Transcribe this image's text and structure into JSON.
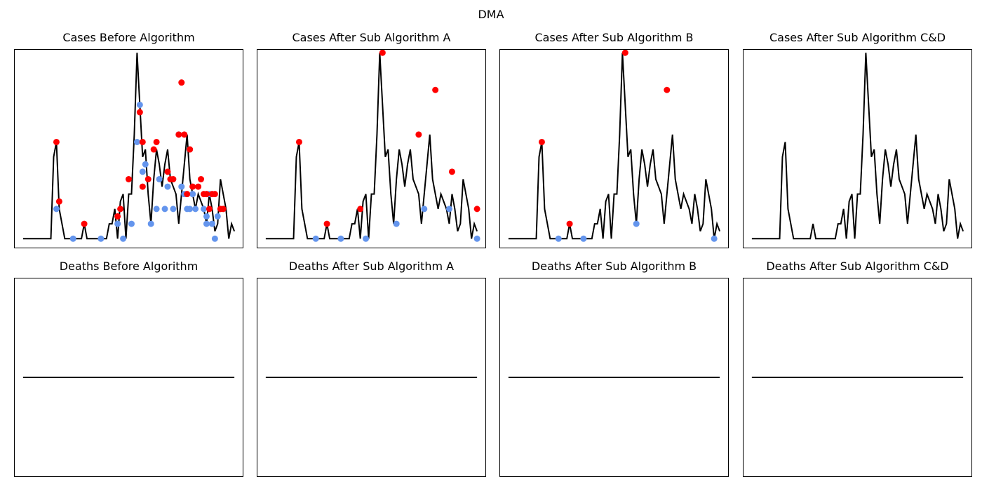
{
  "suptitle": "DMA",
  "colors": {
    "line": "#000000",
    "peak": "#ff0000",
    "trough": "#6495ed"
  },
  "panels": [
    {
      "title": "Cases Before Algorithm",
      "row": 0,
      "col": 0
    },
    {
      "title": "Cases After Sub Algorithm A",
      "row": 0,
      "col": 1
    },
    {
      "title": "Cases After Sub Algorithm B",
      "row": 0,
      "col": 2
    },
    {
      "title": "Cases After Sub Algorithm C&D",
      "row": 0,
      "col": 3
    },
    {
      "title": "Deaths Before Algorithm",
      "row": 1,
      "col": 0
    },
    {
      "title": "Deaths After Sub Algorithm A",
      "row": 1,
      "col": 1
    },
    {
      "title": "Deaths After Sub Algorithm B",
      "row": 1,
      "col": 2
    },
    {
      "title": "Deaths After Sub Algorithm C&D",
      "row": 1,
      "col": 3
    }
  ],
  "chart_data": [
    {
      "type": "line",
      "title": "Cases Before Algorithm",
      "axes_visible": false,
      "xlim": [
        -3,
        79
      ],
      "ylim": [
        -0.6,
        12.7
      ],
      "series": [
        {
          "x": [
            0,
            1,
            2,
            3,
            4,
            5,
            6,
            7,
            8,
            9,
            10,
            11,
            12,
            13,
            14,
            15,
            16,
            17,
            18,
            19,
            20,
            21,
            22,
            23,
            24,
            25,
            26,
            27,
            28,
            29,
            30,
            31,
            32,
            33,
            34,
            35,
            36,
            37,
            38,
            39,
            40,
            41,
            42,
            43,
            44,
            45,
            46,
            47,
            48,
            49,
            50,
            51,
            52,
            53,
            54,
            55,
            56,
            57,
            58,
            59,
            60,
            61,
            62,
            63,
            64,
            65,
            66,
            67,
            68,
            69,
            70,
            71,
            72,
            73,
            74,
            75,
            76
          ],
          "y": [
            0,
            0,
            0,
            0,
            0,
            0,
            0,
            0,
            0,
            0,
            0,
            5.5,
            6.5,
            2,
            1,
            0,
            0,
            0,
            0,
            0,
            0,
            0,
            1,
            0,
            0,
            0,
            0,
            0,
            0,
            0,
            0,
            1,
            1,
            2,
            0,
            2.5,
            3,
            0,
            3,
            3,
            7,
            12.5,
            9,
            5.5,
            6,
            3,
            1,
            4,
            6,
            5,
            3.5,
            5,
            6,
            4,
            3.5,
            3,
            1,
            3,
            5,
            7,
            4,
            3,
            2,
            3,
            2.5,
            2,
            1,
            3,
            2,
            0.5,
            1,
            4,
            3,
            2,
            0,
            1,
            0.5
          ]
        }
      ],
      "peaks": [
        [
          12,
          6.5
        ],
        [
          13,
          2.5
        ],
        [
          22,
          1
        ],
        [
          34,
          1.5
        ],
        [
          35,
          2
        ],
        [
          38,
          4
        ],
        [
          42,
          8.5
        ],
        [
          43,
          6.5
        ],
        [
          43,
          3.5
        ],
        [
          45,
          4
        ],
        [
          47,
          6
        ],
        [
          48,
          6.5
        ],
        [
          52,
          4.5
        ],
        [
          53,
          4
        ],
        [
          54,
          4
        ],
        [
          56,
          7
        ],
        [
          57,
          10.5
        ],
        [
          58,
          7
        ],
        [
          59,
          3
        ],
        [
          60,
          6
        ],
        [
          61,
          3.5
        ],
        [
          63,
          3.5
        ],
        [
          64,
          4
        ],
        [
          65,
          3
        ],
        [
          66,
          3
        ],
        [
          67,
          2
        ],
        [
          68,
          3
        ],
        [
          69,
          3
        ],
        [
          71,
          2
        ],
        [
          72,
          2
        ]
      ],
      "troughs": [
        [
          12,
          2
        ],
        [
          18,
          0
        ],
        [
          28,
          0
        ],
        [
          34,
          1
        ],
        [
          36,
          0
        ],
        [
          39,
          1
        ],
        [
          41,
          6.5
        ],
        [
          42,
          9
        ],
        [
          43,
          4.5
        ],
        [
          44,
          5
        ],
        [
          46,
          1
        ],
        [
          48,
          2
        ],
        [
          49,
          4
        ],
        [
          51,
          2
        ],
        [
          52,
          3.5
        ],
        [
          54,
          2
        ],
        [
          56,
          7
        ],
        [
          57,
          3.5
        ],
        [
          58,
          3
        ],
        [
          59,
          2
        ],
        [
          60,
          2
        ],
        [
          61,
          3
        ],
        [
          62,
          2
        ],
        [
          65,
          2
        ],
        [
          66,
          1.5
        ],
        [
          66,
          1
        ],
        [
          67,
          3
        ],
        [
          68,
          1
        ],
        [
          69,
          0
        ],
        [
          70,
          1.5
        ]
      ]
    },
    {
      "type": "line",
      "title": "Cases After Sub Algorithm A",
      "axes_visible": false,
      "xlim": [
        -3,
        79
      ],
      "ylim": [
        -0.6,
        12.7
      ],
      "series": [
        {
          "x": [
            0,
            1,
            2,
            3,
            4,
            5,
            6,
            7,
            8,
            9,
            10,
            11,
            12,
            13,
            14,
            15,
            16,
            17,
            18,
            19,
            20,
            21,
            22,
            23,
            24,
            25,
            26,
            27,
            28,
            29,
            30,
            31,
            32,
            33,
            34,
            35,
            36,
            37,
            38,
            39,
            40,
            41,
            42,
            43,
            44,
            45,
            46,
            47,
            48,
            49,
            50,
            51,
            52,
            53,
            54,
            55,
            56,
            57,
            58,
            59,
            60,
            61,
            62,
            63,
            64,
            65,
            66,
            67,
            68,
            69,
            70,
            71,
            72,
            73,
            74,
            75,
            76
          ],
          "y": [
            0,
            0,
            0,
            0,
            0,
            0,
            0,
            0,
            0,
            0,
            0,
            5.5,
            6.5,
            2,
            1,
            0,
            0,
            0,
            0,
            0,
            0,
            0,
            1,
            0,
            0,
            0,
            0,
            0,
            0,
            0,
            0,
            1,
            1,
            2,
            0,
            2.5,
            3,
            0,
            3,
            3,
            7,
            12.5,
            9,
            5.5,
            6,
            3,
            1,
            4,
            6,
            5,
            3.5,
            5,
            6,
            4,
            3.5,
            3,
            1,
            3,
            5,
            7,
            4,
            3,
            2,
            3,
            2.5,
            2,
            1,
            3,
            2,
            0.5,
            1,
            4,
            3,
            2,
            0,
            1,
            0.5
          ]
        }
      ],
      "peaks": [
        [
          12,
          6.5
        ],
        [
          22,
          1
        ],
        [
          34,
          2
        ],
        [
          42,
          12.5
        ],
        [
          55,
          7
        ],
        [
          61,
          10
        ],
        [
          67,
          4.5
        ],
        [
          76,
          2
        ]
      ],
      "troughs": [
        [
          18,
          0
        ],
        [
          27,
          0
        ],
        [
          36,
          0
        ],
        [
          47,
          1
        ],
        [
          57,
          2
        ],
        [
          66,
          2
        ],
        [
          76,
          0
        ]
      ]
    },
    {
      "type": "line",
      "title": "Cases After Sub Algorithm B",
      "axes_visible": false,
      "xlim": [
        -3,
        79
      ],
      "ylim": [
        -0.6,
        12.7
      ],
      "series": [
        {
          "x": [
            0,
            1,
            2,
            3,
            4,
            5,
            6,
            7,
            8,
            9,
            10,
            11,
            12,
            13,
            14,
            15,
            16,
            17,
            18,
            19,
            20,
            21,
            22,
            23,
            24,
            25,
            26,
            27,
            28,
            29,
            30,
            31,
            32,
            33,
            34,
            35,
            36,
            37,
            38,
            39,
            40,
            41,
            42,
            43,
            44,
            45,
            46,
            47,
            48,
            49,
            50,
            51,
            52,
            53,
            54,
            55,
            56,
            57,
            58,
            59,
            60,
            61,
            62,
            63,
            64,
            65,
            66,
            67,
            68,
            69,
            70,
            71,
            72,
            73,
            74,
            75,
            76
          ],
          "y": [
            0,
            0,
            0,
            0,
            0,
            0,
            0,
            0,
            0,
            0,
            0,
            5.5,
            6.5,
            2,
            1,
            0,
            0,
            0,
            0,
            0,
            0,
            0,
            1,
            0,
            0,
            0,
            0,
            0,
            0,
            0,
            0,
            1,
            1,
            2,
            0,
            2.5,
            3,
            0,
            3,
            3,
            7,
            12.5,
            9,
            5.5,
            6,
            3,
            1,
            4,
            6,
            5,
            3.5,
            5,
            6,
            4,
            3.5,
            3,
            1,
            3,
            5,
            7,
            4,
            3,
            2,
            3,
            2.5,
            2,
            1,
            3,
            2,
            0.5,
            1,
            4,
            3,
            2,
            0,
            1,
            0.5
          ]
        }
      ],
      "peaks": [
        [
          12,
          6.5
        ],
        [
          22,
          1
        ],
        [
          42,
          12.5
        ],
        [
          57,
          10
        ]
      ],
      "troughs": [
        [
          18,
          0
        ],
        [
          27,
          0
        ],
        [
          46,
          1
        ],
        [
          74,
          0
        ]
      ]
    },
    {
      "type": "line",
      "title": "Cases After Sub Algorithm C&D",
      "axes_visible": false,
      "xlim": [
        -3,
        79
      ],
      "ylim": [
        -0.6,
        12.7
      ],
      "series": [
        {
          "x": [
            0,
            1,
            2,
            3,
            4,
            5,
            6,
            7,
            8,
            9,
            10,
            11,
            12,
            13,
            14,
            15,
            16,
            17,
            18,
            19,
            20,
            21,
            22,
            23,
            24,
            25,
            26,
            27,
            28,
            29,
            30,
            31,
            32,
            33,
            34,
            35,
            36,
            37,
            38,
            39,
            40,
            41,
            42,
            43,
            44,
            45,
            46,
            47,
            48,
            49,
            50,
            51,
            52,
            53,
            54,
            55,
            56,
            57,
            58,
            59,
            60,
            61,
            62,
            63,
            64,
            65,
            66,
            67,
            68,
            69,
            70,
            71,
            72,
            73,
            74,
            75,
            76
          ],
          "y": [
            0,
            0,
            0,
            0,
            0,
            0,
            0,
            0,
            0,
            0,
            0,
            5.5,
            6.5,
            2,
            1,
            0,
            0,
            0,
            0,
            0,
            0,
            0,
            1,
            0,
            0,
            0,
            0,
            0,
            0,
            0,
            0,
            1,
            1,
            2,
            0,
            2.5,
            3,
            0,
            3,
            3,
            7,
            12.5,
            9,
            5.5,
            6,
            3,
            1,
            4,
            6,
            5,
            3.5,
            5,
            6,
            4,
            3.5,
            3,
            1,
            3,
            5,
            7,
            4,
            3,
            2,
            3,
            2.5,
            2,
            1,
            3,
            2,
            0.5,
            1,
            4,
            3,
            2,
            0,
            1,
            0.5
          ]
        }
      ],
      "peaks": [],
      "troughs": []
    },
    {
      "type": "line",
      "title": "Deaths Before Algorithm",
      "axes_visible": false,
      "xlim": [
        -3,
        79
      ],
      "ylim": [
        -0.055,
        0.055
      ],
      "series": [
        {
          "x": [
            0,
            76
          ],
          "y": [
            0,
            0
          ]
        }
      ],
      "peaks": [],
      "troughs": []
    },
    {
      "type": "line",
      "title": "Deaths After Sub Algorithm A",
      "axes_visible": false,
      "xlim": [
        -3,
        79
      ],
      "ylim": [
        -0.055,
        0.055
      ],
      "series": [
        {
          "x": [
            0,
            76
          ],
          "y": [
            0,
            0
          ]
        }
      ],
      "peaks": [],
      "troughs": []
    },
    {
      "type": "line",
      "title": "Deaths After Sub Algorithm B",
      "axes_visible": false,
      "xlim": [
        -3,
        79
      ],
      "ylim": [
        -0.055,
        0.055
      ],
      "series": [
        {
          "x": [
            0,
            76
          ],
          "y": [
            0,
            0
          ]
        }
      ],
      "peaks": [],
      "troughs": []
    },
    {
      "type": "line",
      "title": "Deaths After Sub Algorithm C&D",
      "axes_visible": false,
      "xlim": [
        -3,
        79
      ],
      "ylim": [
        -0.055,
        0.055
      ],
      "series": [
        {
          "x": [
            0,
            76
          ],
          "y": [
            0,
            0
          ]
        }
      ],
      "peaks": [],
      "troughs": []
    }
  ]
}
